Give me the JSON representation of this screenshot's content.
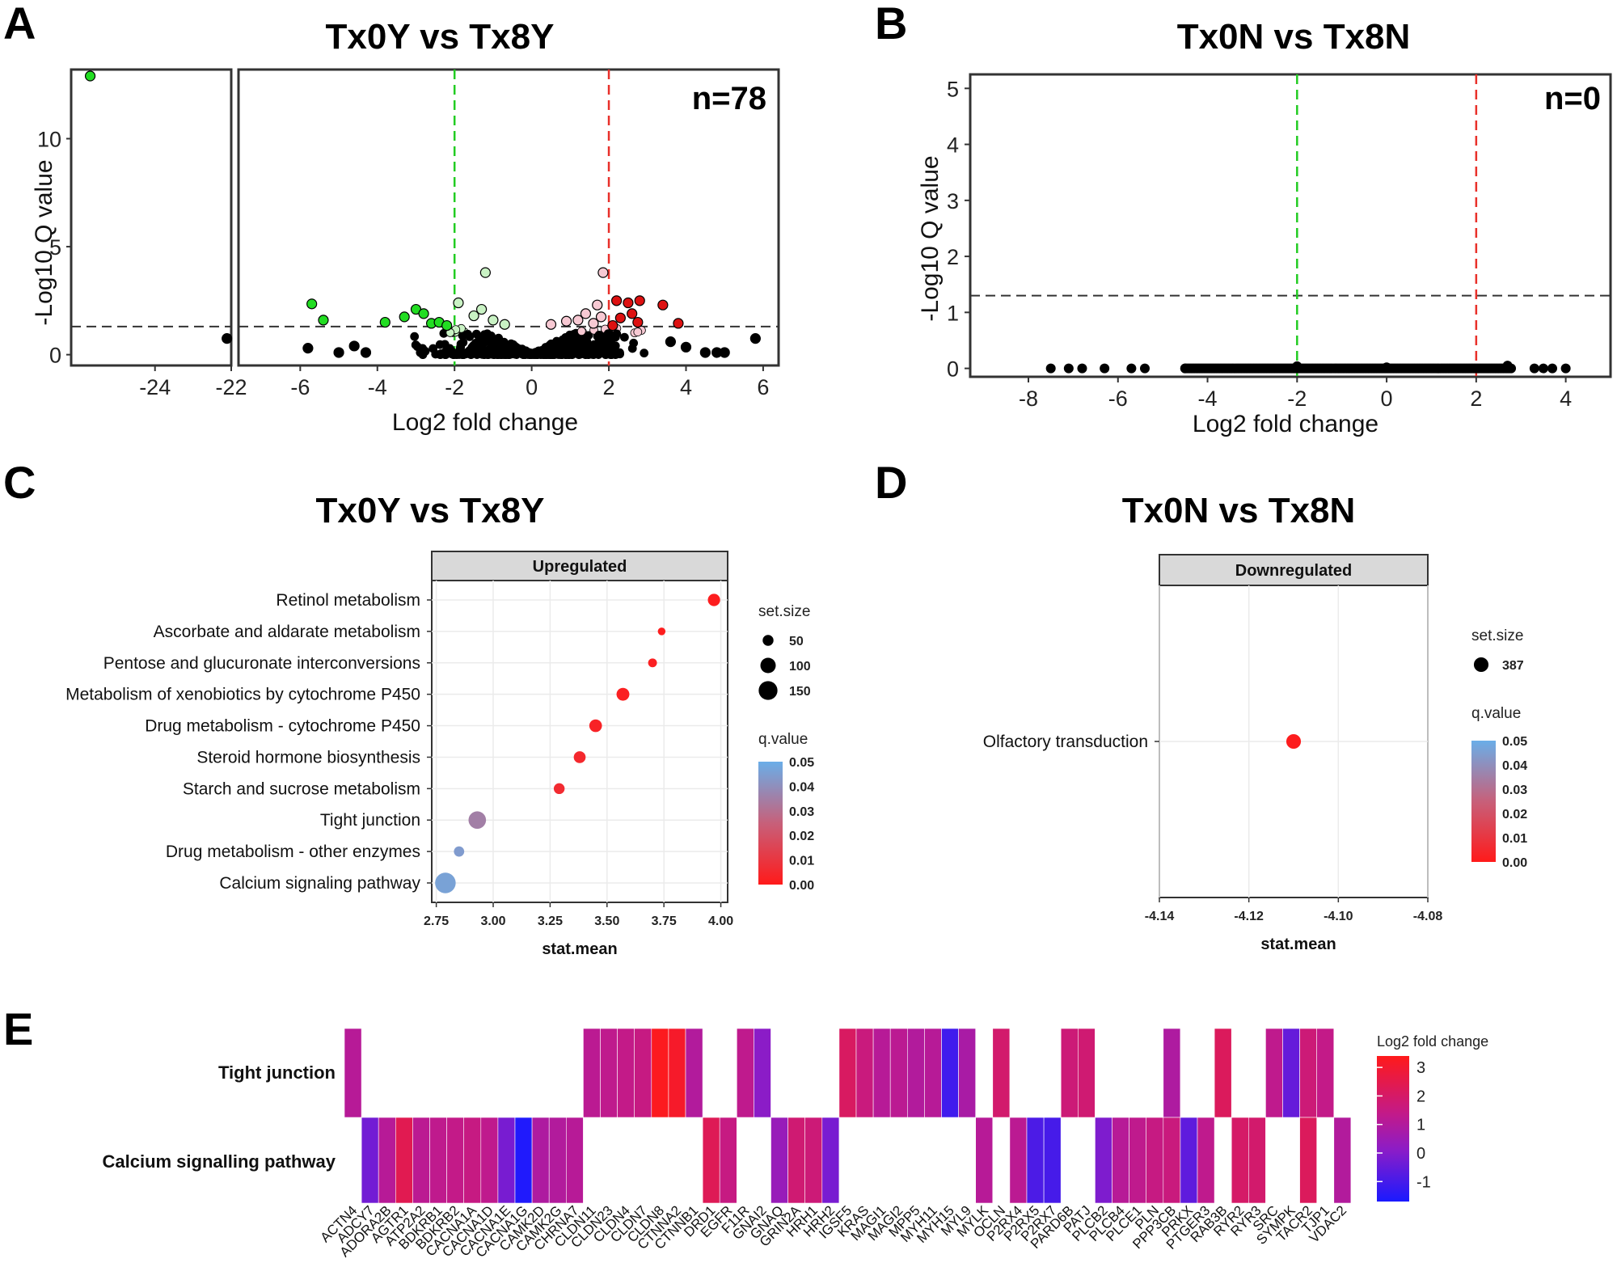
{
  "panel_labels": [
    "A",
    "B",
    "C",
    "D",
    "E"
  ],
  "chart_data": [
    {
      "id": "A",
      "type": "scatter",
      "title": "Tx0Y vs Tx8Y",
      "xlabel": "Log2 fold change",
      "ylabel": "-Log10 Q value",
      "annotation": "n=78",
      "xlim_broken": [
        [
          -26.2,
          -22
        ],
        [
          -7.6,
          6.4
        ]
      ],
      "x_ticks_left": [
        -24,
        -22
      ],
      "x_ticks_right": [
        -6,
        -4,
        -2,
        0,
        2,
        4,
        6
      ],
      "ylim": [
        -0.5,
        13.2
      ],
      "y_ticks": [
        0,
        5,
        10
      ],
      "vlines": [
        {
          "x": -2,
          "color": "#22cc22"
        },
        {
          "x": 2,
          "color": "#e8302a"
        }
      ],
      "hline": 1.3,
      "colors": {
        "sig_down": "#22dd22",
        "down": "#c9f2c4",
        "ns": "#000000",
        "up": "#f7c9d3",
        "sig_up": "#dd1111"
      },
      "points": [
        {
          "x": -25.7,
          "y": 12.9,
          "c": "sig_down"
        },
        {
          "x": -7.9,
          "y": 0.75,
          "c": "ns"
        },
        {
          "x": -5.7,
          "y": 2.35,
          "c": "sig_down"
        },
        {
          "x": -5.4,
          "y": 1.6,
          "c": "sig_down"
        },
        {
          "x": -5.8,
          "y": 0.3,
          "c": "ns"
        },
        {
          "x": -5.0,
          "y": 0.1,
          "c": "ns"
        },
        {
          "x": -4.6,
          "y": 0.4,
          "c": "ns"
        },
        {
          "x": -4.3,
          "y": 0.1,
          "c": "ns"
        },
        {
          "x": -3.8,
          "y": 1.5,
          "c": "sig_down"
        },
        {
          "x": -3.3,
          "y": 1.75,
          "c": "sig_down"
        },
        {
          "x": -3.0,
          "y": 2.1,
          "c": "sig_down"
        },
        {
          "x": -2.8,
          "y": 1.9,
          "c": "sig_down"
        },
        {
          "x": -2.6,
          "y": 1.45,
          "c": "sig_down"
        },
        {
          "x": -2.4,
          "y": 1.5,
          "c": "sig_down"
        },
        {
          "x": -2.2,
          "y": 1.35,
          "c": "sig_down"
        },
        {
          "x": -1.9,
          "y": 2.4,
          "c": "down"
        },
        {
          "x": -1.5,
          "y": 1.8,
          "c": "down"
        },
        {
          "x": -1.3,
          "y": 2.1,
          "c": "down"
        },
        {
          "x": -1.2,
          "y": 3.8,
          "c": "down"
        },
        {
          "x": -1.0,
          "y": 1.6,
          "c": "down"
        },
        {
          "x": -0.7,
          "y": 1.4,
          "c": "down"
        },
        {
          "x": 0.5,
          "y": 1.4,
          "c": "up"
        },
        {
          "x": 0.9,
          "y": 1.55,
          "c": "up"
        },
        {
          "x": 1.2,
          "y": 1.6,
          "c": "up"
        },
        {
          "x": 1.4,
          "y": 1.9,
          "c": "up"
        },
        {
          "x": 1.6,
          "y": 1.45,
          "c": "up"
        },
        {
          "x": 1.7,
          "y": 2.3,
          "c": "up"
        },
        {
          "x": 1.85,
          "y": 3.8,
          "c": "up"
        },
        {
          "x": 1.8,
          "y": 1.75,
          "c": "up"
        },
        {
          "x": 2.1,
          "y": 1.35,
          "c": "sig_up"
        },
        {
          "x": 2.2,
          "y": 2.5,
          "c": "sig_up"
        },
        {
          "x": 2.3,
          "y": 1.7,
          "c": "sig_up"
        },
        {
          "x": 2.5,
          "y": 2.4,
          "c": "sig_up"
        },
        {
          "x": 2.6,
          "y": 1.9,
          "c": "sig_up"
        },
        {
          "x": 2.8,
          "y": 2.5,
          "c": "sig_up"
        },
        {
          "x": 2.75,
          "y": 1.5,
          "c": "sig_up"
        },
        {
          "x": 3.4,
          "y": 2.3,
          "c": "sig_up"
        },
        {
          "x": 3.8,
          "y": 1.45,
          "c": "sig_up"
        },
        {
          "x": 3.6,
          "y": 0.6,
          "c": "ns"
        },
        {
          "x": 4.0,
          "y": 0.35,
          "c": "ns"
        },
        {
          "x": 4.5,
          "y": 0.1,
          "c": "ns"
        },
        {
          "x": 4.8,
          "y": 0.1,
          "c": "ns"
        },
        {
          "x": 5.0,
          "y": 0.1,
          "c": "ns"
        },
        {
          "x": 5.8,
          "y": 0.75,
          "c": "ns"
        }
      ]
    },
    {
      "id": "B",
      "type": "scatter",
      "title": "Tx0N vs Tx8N",
      "xlabel": "Log2 fold change",
      "ylabel": "-Log10 Q value",
      "annotation": "n=0",
      "xlim": [
        -9.3,
        5.0
      ],
      "x_ticks": [
        -8,
        -6,
        -4,
        -2,
        0,
        2,
        4
      ],
      "ylim": [
        -0.15,
        5.25
      ],
      "y_ticks": [
        0,
        1,
        2,
        3,
        4,
        5
      ],
      "vlines": [
        {
          "x": -2,
          "color": "#22cc22"
        },
        {
          "x": 2,
          "color": "#e8302a"
        }
      ],
      "hline": 1.3,
      "points": [
        {
          "x": -7.5,
          "y": 0.0
        },
        {
          "x": -7.1,
          "y": 0.0
        },
        {
          "x": -6.8,
          "y": 0.0
        },
        {
          "x": -6.3,
          "y": 0.0
        },
        {
          "x": -5.7,
          "y": 0.0
        },
        {
          "x": -5.4,
          "y": 0.0
        },
        {
          "x": -4.5,
          "y": 0.0
        },
        {
          "x": -2.0,
          "y": 0.04
        },
        {
          "x": 0.0,
          "y": 0.02
        },
        {
          "x": 2.7,
          "y": 0.05
        },
        {
          "x": 3.3,
          "y": 0.0
        },
        {
          "x": 3.5,
          "y": 0.0
        },
        {
          "x": 3.7,
          "y": 0.0
        },
        {
          "x": 4.0,
          "y": 0.0
        }
      ],
      "dense_range": [
        -4.5,
        2.8
      ]
    },
    {
      "id": "C",
      "type": "scatter",
      "title": "Tx0Y vs Tx8Y",
      "strip": "Upregulated",
      "xlabel": "stat.mean",
      "xlim": [
        2.73,
        4.03
      ],
      "x_ticks": [
        "2.75",
        "3.00",
        "3.25",
        "3.50",
        "3.75",
        "4.00"
      ],
      "size_legend_title": "set.size",
      "size_legend": [
        50,
        100,
        150
      ],
      "color_legend_title": "q.value",
      "color_legend_ticks": [
        "0.05",
        "0.04",
        "0.03",
        "0.02",
        "0.01",
        "0.00"
      ],
      "rows": [
        {
          "label": "Retinol metabolism",
          "x": 3.97,
          "size": 64,
          "q": 0.001
        },
        {
          "label": "Ascorbate and aldarate metabolism",
          "x": 3.74,
          "size": 25,
          "q": 0.001
        },
        {
          "label": "Pentose and glucuronate interconversions",
          "x": 3.7,
          "size": 33,
          "q": 0.002
        },
        {
          "label": "Metabolism of xenobiotics by cytochrome P450",
          "x": 3.57,
          "size": 70,
          "q": 0.002
        },
        {
          "label": "Drug metabolism - cytochrome P450",
          "x": 3.45,
          "size": 68,
          "q": 0.003
        },
        {
          "label": "Steroid hormone biosynthesis",
          "x": 3.38,
          "size": 60,
          "q": 0.005
        },
        {
          "label": "Starch and sucrose metabolism",
          "x": 3.29,
          "size": 50,
          "q": 0.006
        },
        {
          "label": "Tight junction",
          "x": 2.93,
          "size": 130,
          "q": 0.035
        },
        {
          "label": "Drug metabolism - other enzymes",
          "x": 2.85,
          "size": 45,
          "q": 0.044
        },
        {
          "label": "Calcium signaling pathway",
          "x": 2.79,
          "size": 180,
          "q": 0.046
        }
      ]
    },
    {
      "id": "D",
      "type": "scatter",
      "title": "Tx0N vs Tx8N",
      "strip": "Downregulated",
      "xlabel": "stat.mean",
      "xlim": [
        -4.14,
        -4.08
      ],
      "x_ticks": [
        "-4.14",
        "-4.12",
        "-4.10",
        "-4.08"
      ],
      "size_legend_title": "set.size",
      "size_legend": [
        387
      ],
      "color_legend_title": "q.value",
      "color_legend_ticks": [
        "0.05",
        "0.04",
        "0.03",
        "0.02",
        "0.01",
        "0.00"
      ],
      "rows": [
        {
          "label": "Olfactory transduction",
          "x": -4.11,
          "size": 387,
          "q": 0.001
        }
      ]
    },
    {
      "id": "E",
      "type": "heatmap",
      "rows": [
        "Tight junction",
        "Calcium signalling pathway"
      ],
      "legend_title": "Log2 fold change",
      "legend_ticks": [
        3,
        2,
        1,
        0,
        -1
      ],
      "value_range": [
        -1.7,
        3.4
      ],
      "genes": [
        "ACTN4",
        "ADCY7",
        "ADORA2B",
        "AGTR1",
        "ATP2A2",
        "BDKRB1",
        "BDKRB2",
        "CACNA1A",
        "CACNA1D",
        "CACNA1E",
        "CACNA1G",
        "CAMK2D",
        "CAMK2G",
        "CHRNA7",
        "CLDN11",
        "CLDN23",
        "CLDN4",
        "CLDN7",
        "CLDN8",
        "CTNNA2",
        "CTNNB1",
        "DRD1",
        "EGFR",
        "F11R",
        "GNAI2",
        "GNAQ",
        "GRIN2A",
        "HRH1",
        "HRH2",
        "IGSF5",
        "KRAS",
        "MAGI1",
        "MAGI2",
        "MPP5",
        "MYH11",
        "MYH15",
        "MYL9",
        "MYLK",
        "OCLN",
        "P2RX4",
        "P2RX5",
        "P2RX7",
        "PARD6B",
        "PATJ",
        "PLCB2",
        "PLCB4",
        "PLCE1",
        "PLN",
        "PPP3CB",
        "PRKX",
        "PTGER3",
        "RAB3B",
        "RYR2",
        "RYR3",
        "SRC",
        "SYMPK",
        "TACR2",
        "TJP1",
        "VDAC2"
      ],
      "tight_junction": [
        1.1,
        null,
        null,
        null,
        null,
        null,
        null,
        null,
        null,
        null,
        null,
        null,
        null,
        null,
        1.2,
        1.3,
        1.4,
        1.5,
        3.3,
        3.1,
        1.0,
        null,
        null,
        1.3,
        0.1,
        null,
        null,
        null,
        null,
        2.1,
        1.6,
        1.1,
        1.2,
        1.0,
        1.1,
        -1.1,
        0.8,
        null,
        1.9,
        null,
        null,
        null,
        1.7,
        1.8,
        null,
        null,
        null,
        null,
        0.9,
        null,
        null,
        2.2,
        null,
        null,
        1.3,
        -0.5,
        1.7,
        1.4,
        null
      ],
      "calcium_signalling": [
        null,
        -0.3,
        1.1,
        2.4,
        1.2,
        1.3,
        1.4,
        1.5,
        1.3,
        -0.2,
        -1.6,
        0.9,
        1.0,
        1.1,
        null,
        null,
        null,
        null,
        null,
        null,
        null,
        2.3,
        1.5,
        null,
        null,
        0.4,
        1.8,
        1.7,
        -0.2,
        null,
        null,
        null,
        null,
        null,
        null,
        null,
        null,
        1.1,
        null,
        1.2,
        -0.9,
        -1.0,
        null,
        null,
        -0.1,
        1.1,
        1.3,
        1.5,
        1.6,
        -0.6,
        1.3,
        null,
        2.0,
        1.9,
        null,
        null,
        2.2,
        null,
        1.0
      ]
    }
  ]
}
